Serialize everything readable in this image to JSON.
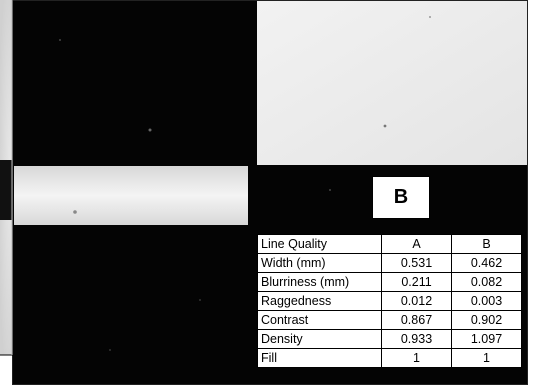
{
  "image": {
    "label": "B"
  },
  "table": {
    "headers": [
      "Line Quality",
      "A",
      "B"
    ],
    "rows": [
      {
        "name": "Width (mm)",
        "a": "0.531",
        "b": "0.462"
      },
      {
        "name": "Blurriness (mm)",
        "a": "0.211",
        "b": "0.082"
      },
      {
        "name": "Raggedness",
        "a": "0.012",
        "b": "0.003"
      },
      {
        "name": "Contrast",
        "a": "0.867",
        "b": "0.902"
      },
      {
        "name": "Density",
        "a": "0.933",
        "b": "1.097"
      },
      {
        "name": "Fill",
        "a": "1",
        "b": "1"
      }
    ]
  }
}
